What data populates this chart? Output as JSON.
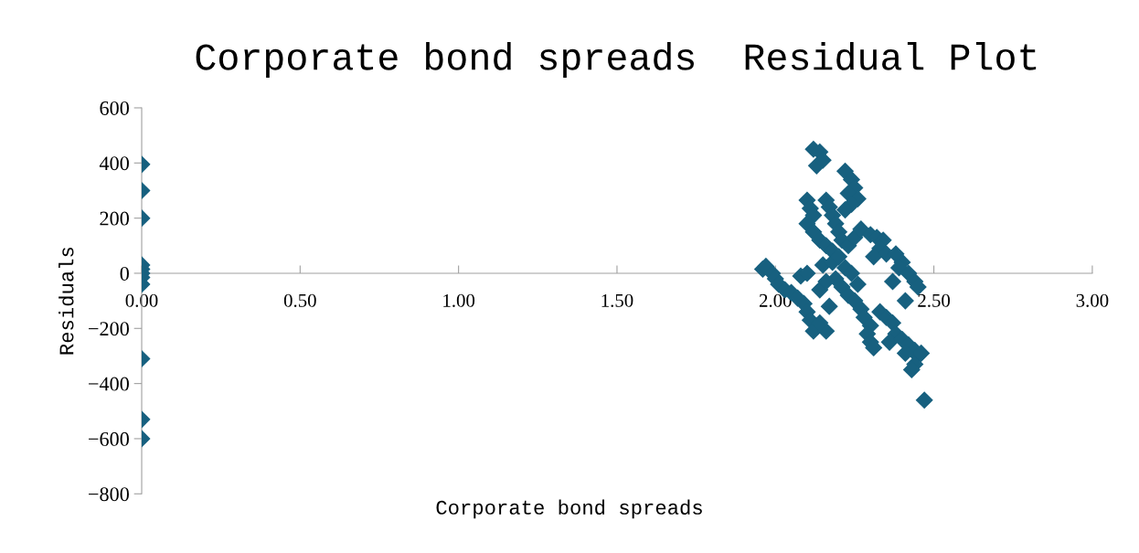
{
  "chart_data": {
    "type": "scatter",
    "title": "Corporate bond spreads  Residual Plot",
    "xlabel": "Corporate bond spreads",
    "ylabel": "Residuals",
    "xlim": [
      0,
      3
    ],
    "xticks": [
      {
        "value": 0,
        "label": "0.00"
      },
      {
        "value": 0.5,
        "label": "0.50"
      },
      {
        "value": 1,
        "label": "1.00"
      },
      {
        "value": 1.5,
        "label": "1.50"
      },
      {
        "value": 2,
        "label": "2.00"
      },
      {
        "value": 2.5,
        "label": "2.50"
      },
      {
        "value": 3,
        "label": "3.00"
      }
    ],
    "ylim": [
      -800,
      600
    ],
    "yticks": [
      {
        "value": -800,
        "label": "−800"
      },
      {
        "value": -600,
        "label": "−600"
      },
      {
        "value": -400,
        "label": "−400"
      },
      {
        "value": -200,
        "label": "−200"
      },
      0,
      200,
      400,
      600
    ],
    "grid": false,
    "legend": false,
    "marker": "diamond",
    "series": [
      {
        "color": "#17607f",
        "x": [
          0,
          0,
          0,
          0,
          0,
          0,
          0,
          0,
          0,
          0,
          0,
          2.12,
          2.14,
          2.13,
          2.15,
          2.22,
          2.24,
          2.25,
          2.23,
          2.26,
          2.24,
          2.22,
          2.1,
          2.11,
          2.12,
          2.16,
          2.17,
          2.18,
          2.19,
          2.1,
          2.12,
          2.14,
          2.16,
          2.18,
          2.2,
          2.21,
          2.23,
          2.25,
          2.27,
          2.3,
          2.32,
          2.34,
          2.33,
          2.35,
          2.31,
          2.38,
          2.4,
          2.39,
          2.42,
          2.44,
          2.45,
          2.41,
          2.37,
          1.96,
          1.97,
          1.99,
          2.0,
          2.01,
          2.03,
          2.05,
          2.07,
          2.09,
          2.1,
          2.11,
          2.12,
          2.16,
          2.14,
          2.17,
          2.08,
          2.1,
          2.15,
          2.18,
          2.2,
          2.22,
          2.24,
          2.19,
          2.21,
          2.23,
          2.25,
          2.27,
          2.28,
          2.3,
          2.29,
          2.3,
          2.31,
          2.26,
          2.14,
          2.16,
          2.33,
          2.35,
          2.37,
          2.38,
          2.36,
          2.4,
          2.42,
          2.44,
          2.45,
          2.44,
          2.43,
          2.47,
          2.46,
          2.41
        ],
        "values": [
          395,
          300,
          200,
          30,
          15,
          0,
          -15,
          -40,
          -310,
          -530,
          -600,
          450,
          440,
          390,
          410,
          370,
          340,
          310,
          290,
          270,
          250,
          230,
          265,
          235,
          210,
          265,
          240,
          210,
          180,
          180,
          150,
          120,
          100,
          80,
          150,
          120,
          100,
          130,
          160,
          140,
          130,
          120,
          90,
          70,
          60,
          70,
          40,
          20,
          0,
          -30,
          -50,
          -100,
          -30,
          15,
          25,
          0,
          -20,
          -40,
          -60,
          -70,
          -90,
          -110,
          -140,
          -170,
          -210,
          -210,
          -180,
          -120,
          -10,
          0,
          30,
          40,
          60,
          20,
          0,
          -20,
          -50,
          -80,
          -100,
          -130,
          -160,
          -190,
          -220,
          -250,
          -270,
          -40,
          -60,
          -30,
          -140,
          -160,
          -180,
          -220,
          -250,
          -240,
          -260,
          -280,
          -300,
          -330,
          -350,
          -460,
          -290,
          -290
        ]
      }
    ]
  }
}
